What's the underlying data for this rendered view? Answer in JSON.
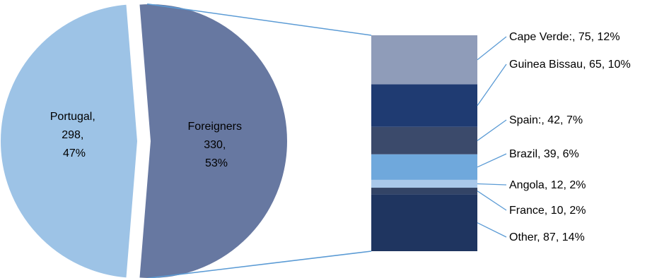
{
  "chart_data": {
    "type": "pie",
    "subtype": "bar-of-pie",
    "title": "",
    "pie": {
      "slices": [
        {
          "name": "Portugal",
          "value": 298,
          "percent": "47%",
          "color": "#9dc3e6"
        },
        {
          "name": "Foreigners",
          "value": 330,
          "percent": "53%",
          "color": "#6778a1"
        }
      ]
    },
    "breakdown_of": "Foreigners",
    "stacked_bar": {
      "segments": [
        {
          "name": "Cape Verde:",
          "value": 75,
          "percent": "12%",
          "color": "#8f9cb9",
          "label": "Cape Verde:, 75, 12%"
        },
        {
          "name": "Guinea Bissau",
          "value": 65,
          "percent": "10%",
          "color": "#1f3b72",
          "label": "Guinea Bissau, 65, 10%"
        },
        {
          "name": "Spain:",
          "value": 42,
          "percent": "7%",
          "color": "#3b4a6b",
          "label": "Spain:, 42, 7%"
        },
        {
          "name": "Brazil",
          "value": 39,
          "percent": "6%",
          "color": "#6fa8dc",
          "label": "Brazil, 39, 6%"
        },
        {
          "name": "Angola",
          "value": 12,
          "percent": "2%",
          "color": "#a9c8ea",
          "label": "Angola, 12, 2%"
        },
        {
          "name": "France",
          "value": 10,
          "percent": "2%",
          "color": "#334466",
          "label": "France, 10, 2%"
        },
        {
          "name": "Other",
          "value": 87,
          "percent": "14%",
          "color": "#1f3560",
          "label": "Other, 87, 14%"
        }
      ]
    },
    "pie_labels": {
      "portugal": [
        "Portugal,",
        "298,",
        "47%"
      ],
      "foreigners": [
        "Foreigners",
        "330,",
        "53%"
      ]
    },
    "connector_color": "#5b9bd5"
  }
}
